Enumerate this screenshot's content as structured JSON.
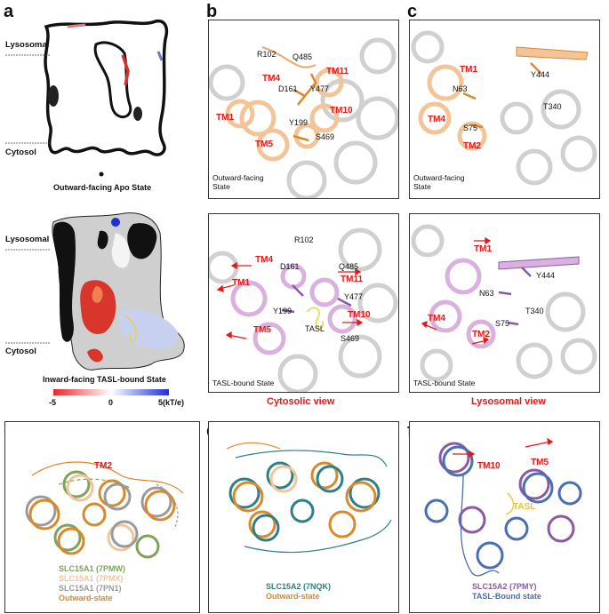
{
  "panels": {
    "a": "a",
    "b": "b",
    "c": "c",
    "d": "d",
    "e": "e",
    "f": "f"
  },
  "panel_a": {
    "lysosomal_top": "Lysosomal",
    "cytosol_top": "Cytosol",
    "caption_top": "Outward-facing Apo State",
    "lysosomal_bottom": "Lysosomal",
    "cytosol_bottom": "Cytosol",
    "caption_bottom": "Inward-facing TASL-bound State",
    "scale_min": "-5",
    "scale_mid": "0",
    "scale_max": "5(kT/e)",
    "colors": {
      "negative": "#e8262a",
      "neutral": "#ffffff",
      "positive": "#1f2fd6"
    }
  },
  "panel_b": {
    "top": {
      "R102": "R102",
      "Q485": "Q485",
      "TM11": "TM11",
      "TM4": "TM4",
      "D161": "D161",
      "Y477": "Y477",
      "TM1": "TM1",
      "TM10": "TM10",
      "Y199": "Y199",
      "TM5": "TM5",
      "S469": "S469",
      "state": "Outward-facing State"
    },
    "bottom": {
      "R102": "R102",
      "TM4": "TM4",
      "D161": "D161",
      "Q485": "Q485",
      "TM1": "TM1",
      "TM11": "TM11",
      "Y477": "Y477",
      "Y199": "Y199",
      "TM10": "TM10",
      "TM5": "TM5",
      "TASL": "TASL",
      "S469": "S469",
      "state": "TASL-bound State"
    },
    "view": "Cytosolic view"
  },
  "panel_c": {
    "top": {
      "TM1": "TM1",
      "Y444": "Y444",
      "N63": "N63",
      "TM4": "TM4",
      "T340": "T340",
      "S75": "S75",
      "TM2": "TM2",
      "state": "Outward-facing State"
    },
    "bottom": {
      "TM1": "TM1",
      "Y444": "Y444",
      "N63": "N63",
      "TM4": "TM4",
      "T340": "T340",
      "S75": "S75",
      "TM2": "TM2",
      "state": "TASL-bound State"
    },
    "view": "Lysosomal view"
  },
  "panel_d": {
    "TM2": "TM2",
    "legend": [
      {
        "text": "SLC15A1 (7PMW)",
        "color": "#7fa35a"
      },
      {
        "text": "SLC15A1 (7PMX)",
        "color": "#f2c49b"
      },
      {
        "text": "SLC15A1 (7PN1)",
        "color": "#9a9a9a"
      },
      {
        "text": "Outward-state",
        "color": "#d9892b"
      }
    ]
  },
  "panel_e": {
    "legend": [
      {
        "text": "SLC15A2 (7NQK)",
        "color": "#2f7f86"
      },
      {
        "text": "Outward-state",
        "color": "#d9892b"
      }
    ]
  },
  "panel_f": {
    "TM10": "TM10",
    "TM5": "TM5",
    "TASL": "TASL",
    "legend": [
      {
        "text": "SLC15A2 (7PMY)",
        "color": "#8a5aa6"
      },
      {
        "text": "TASL-Bound state",
        "color": "#4a6fb0"
      }
    ]
  }
}
